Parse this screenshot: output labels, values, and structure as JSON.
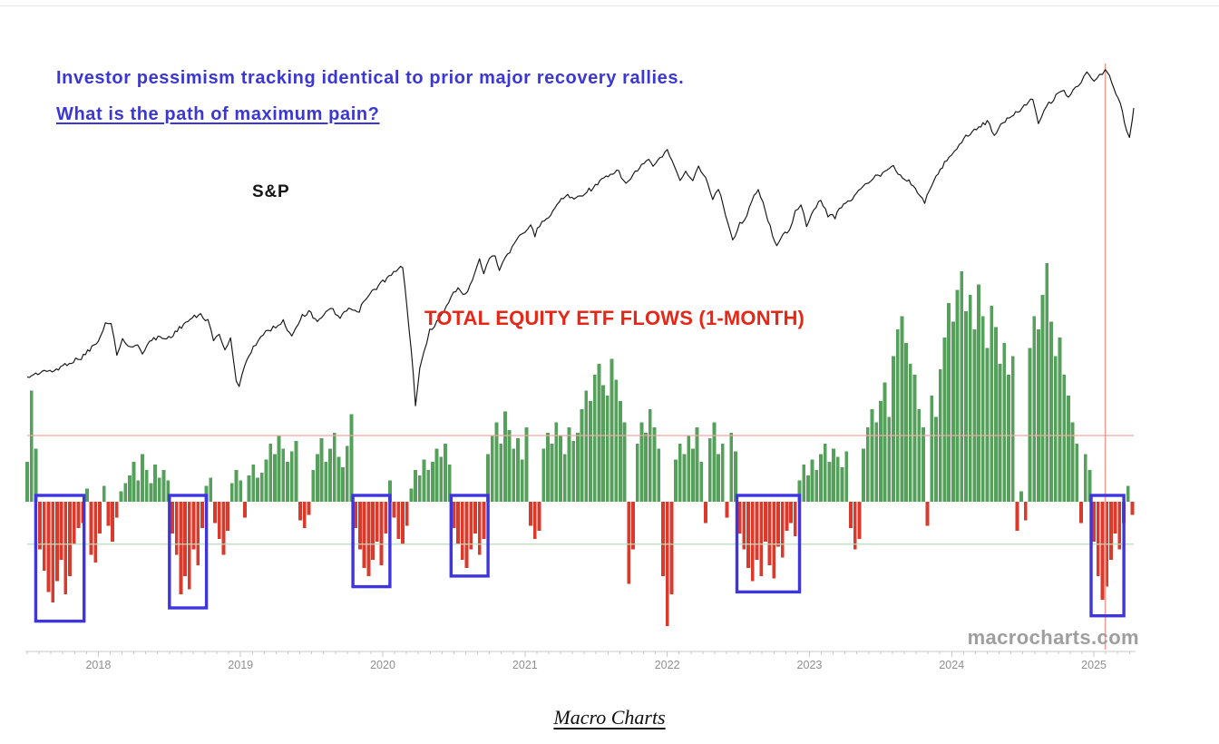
{
  "page": {
    "title_line1": "Investor pessimism tracking identical to prior major recovery rallies.",
    "title_line2": "What is the path of maximum pain?",
    "watermark": "macrocharts.com",
    "caption": "Macro Charts"
  },
  "colors": {
    "title_blue": "#3b37d6",
    "sp_line": "#141414",
    "flows_green": "#55a15b",
    "flows_red": "#d93a2b",
    "flows_label_red": "#e62617",
    "highlight_box_blue": "#3e35dd",
    "threshold_upper": "#f2a79f",
    "threshold_lower": "#b9ddb9",
    "marker_line": "#ee9f98",
    "axis_gray": "#c9c9c9",
    "tick_label_gray": "#8f8f8f",
    "watermark_gray": "#9e9e9e"
  },
  "chart_data": {
    "type": "line+bar combo",
    "title": "Investor pessimism tracking identical to prior major recovery rallies. What is the path of maximum pain?",
    "x_axis": {
      "range": [
        2017.5,
        2025.28
      ],
      "tick_years": [
        2018,
        2019,
        2020,
        2021,
        2022,
        2023,
        2024,
        2025
      ],
      "grid": false
    },
    "sp_price_range": [
      2240,
      6120
    ],
    "flows_value_range": [
      -50,
      92
    ],
    "thresholds": {
      "upper": 25,
      "lower": -16
    },
    "marker_line_t": 2025.08,
    "highlight_boxes": [
      {
        "t0": 2017.56,
        "t1": 2017.9,
        "depth": 43
      },
      {
        "t0": 2018.5,
        "t1": 2018.76,
        "depth": 38
      },
      {
        "t0": 2019.79,
        "t1": 2020.05,
        "depth": 30
      },
      {
        "t0": 2020.48,
        "t1": 2020.74,
        "depth": 26
      },
      {
        "t0": 2022.49,
        "t1": 2022.93,
        "depth": 32
      },
      {
        "t0": 2024.98,
        "t1": 2025.21,
        "depth": 41
      }
    ],
    "series": [
      {
        "name": "S&P 500",
        "type": "line",
        "label": "S&P",
        "points": [
          [
            2017.5,
            2428
          ],
          [
            2017.56,
            2450
          ],
          [
            2017.62,
            2478
          ],
          [
            2017.66,
            2462
          ],
          [
            2017.72,
            2492
          ],
          [
            2017.78,
            2530
          ],
          [
            2017.84,
            2555
          ],
          [
            2017.88,
            2575
          ],
          [
            2017.94,
            2640
          ],
          [
            2018.0,
            2700
          ],
          [
            2018.05,
            2845
          ],
          [
            2018.09,
            2872
          ],
          [
            2018.13,
            2585
          ],
          [
            2018.17,
            2740
          ],
          [
            2018.21,
            2650
          ],
          [
            2018.26,
            2680
          ],
          [
            2018.31,
            2620
          ],
          [
            2018.36,
            2700
          ],
          [
            2018.42,
            2740
          ],
          [
            2018.48,
            2725
          ],
          [
            2018.54,
            2775
          ],
          [
            2018.6,
            2850
          ],
          [
            2018.66,
            2900
          ],
          [
            2018.72,
            2930
          ],
          [
            2018.77,
            2880
          ],
          [
            2018.81,
            2710
          ],
          [
            2018.85,
            2770
          ],
          [
            2018.89,
            2640
          ],
          [
            2018.93,
            2720
          ],
          [
            2018.97,
            2400
          ],
          [
            2018.99,
            2350
          ],
          [
            2019.03,
            2530
          ],
          [
            2019.09,
            2660
          ],
          [
            2019.16,
            2760
          ],
          [
            2019.23,
            2820
          ],
          [
            2019.3,
            2870
          ],
          [
            2019.36,
            2750
          ],
          [
            2019.42,
            2900
          ],
          [
            2019.48,
            2960
          ],
          [
            2019.54,
            2880
          ],
          [
            2019.6,
            2950
          ],
          [
            2019.65,
            2980
          ],
          [
            2019.7,
            2890
          ],
          [
            2019.76,
            2990
          ],
          [
            2019.82,
            2940
          ],
          [
            2019.88,
            3070
          ],
          [
            2019.94,
            3160
          ],
          [
            2020.0,
            3240
          ],
          [
            2020.06,
            3300
          ],
          [
            2020.11,
            3360
          ],
          [
            2020.14,
            3390
          ],
          [
            2020.17,
            3000
          ],
          [
            2020.2,
            2650
          ],
          [
            2020.23,
            2240
          ],
          [
            2020.26,
            2480
          ],
          [
            2020.29,
            2620
          ],
          [
            2020.33,
            2790
          ],
          [
            2020.38,
            2870
          ],
          [
            2020.43,
            2950
          ],
          [
            2020.48,
            3100
          ],
          [
            2020.53,
            3180
          ],
          [
            2020.58,
            3100
          ],
          [
            2020.63,
            3270
          ],
          [
            2020.68,
            3480
          ],
          [
            2020.71,
            3320
          ],
          [
            2020.75,
            3480
          ],
          [
            2020.79,
            3520
          ],
          [
            2020.82,
            3330
          ],
          [
            2020.86,
            3500
          ],
          [
            2020.91,
            3580
          ],
          [
            2020.96,
            3700
          ],
          [
            2021.0,
            3760
          ],
          [
            2021.04,
            3840
          ],
          [
            2021.07,
            3730
          ],
          [
            2021.12,
            3900
          ],
          [
            2021.18,
            3960
          ],
          [
            2021.24,
            4130
          ],
          [
            2021.3,
            4200
          ],
          [
            2021.36,
            4160
          ],
          [
            2021.42,
            4240
          ],
          [
            2021.48,
            4300
          ],
          [
            2021.54,
            4400
          ],
          [
            2021.6,
            4460
          ],
          [
            2021.66,
            4520
          ],
          [
            2021.71,
            4340
          ],
          [
            2021.76,
            4470
          ],
          [
            2021.82,
            4600
          ],
          [
            2021.87,
            4680
          ],
          [
            2021.9,
            4560
          ],
          [
            2021.95,
            4710
          ],
          [
            2022.0,
            4795
          ],
          [
            2022.05,
            4620
          ],
          [
            2022.09,
            4370
          ],
          [
            2022.13,
            4540
          ],
          [
            2022.18,
            4380
          ],
          [
            2022.22,
            4600
          ],
          [
            2022.27,
            4420
          ],
          [
            2022.32,
            4150
          ],
          [
            2022.36,
            4290
          ],
          [
            2022.41,
            3980
          ],
          [
            2022.46,
            3670
          ],
          [
            2022.51,
            3850
          ],
          [
            2022.56,
            3960
          ],
          [
            2022.61,
            4180
          ],
          [
            2022.64,
            4300
          ],
          [
            2022.69,
            4020
          ],
          [
            2022.74,
            3720
          ],
          [
            2022.77,
            3590
          ],
          [
            2022.81,
            3720
          ],
          [
            2022.86,
            3800
          ],
          [
            2022.9,
            4000
          ],
          [
            2022.94,
            4080
          ],
          [
            2022.98,
            3840
          ],
          [
            2023.03,
            4000
          ],
          [
            2023.08,
            4150
          ],
          [
            2023.13,
            3960
          ],
          [
            2023.18,
            3940
          ],
          [
            2023.24,
            4100
          ],
          [
            2023.3,
            4160
          ],
          [
            2023.36,
            4280
          ],
          [
            2023.43,
            4400
          ],
          [
            2023.5,
            4480
          ],
          [
            2023.56,
            4580
          ],
          [
            2023.59,
            4600
          ],
          [
            2023.64,
            4460
          ],
          [
            2023.7,
            4380
          ],
          [
            2023.76,
            4250
          ],
          [
            2023.81,
            4120
          ],
          [
            2023.86,
            4320
          ],
          [
            2023.92,
            4550
          ],
          [
            2023.98,
            4720
          ],
          [
            2024.02,
            4800
          ],
          [
            2024.07,
            4940
          ],
          [
            2024.13,
            5080
          ],
          [
            2024.19,
            5160
          ],
          [
            2024.25,
            5250
          ],
          [
            2024.3,
            5060
          ],
          [
            2024.36,
            5220
          ],
          [
            2024.42,
            5350
          ],
          [
            2024.48,
            5450
          ],
          [
            2024.54,
            5570
          ],
          [
            2024.57,
            5650
          ],
          [
            2024.61,
            5220
          ],
          [
            2024.65,
            5450
          ],
          [
            2024.7,
            5580
          ],
          [
            2024.75,
            5720
          ],
          [
            2024.79,
            5770
          ],
          [
            2024.82,
            5660
          ],
          [
            2024.87,
            5800
          ],
          [
            2024.91,
            5900
          ],
          [
            2024.95,
            6090
          ],
          [
            2025.0,
            5910
          ],
          [
            2025.04,
            6020
          ],
          [
            2025.08,
            6110
          ],
          [
            2025.11,
            6000
          ],
          [
            2025.14,
            5850
          ],
          [
            2025.17,
            5620
          ],
          [
            2025.2,
            5420
          ],
          [
            2025.23,
            5100
          ],
          [
            2025.25,
            4982
          ],
          [
            2025.27,
            5280
          ],
          [
            2025.28,
            5470
          ]
        ]
      },
      {
        "name": "Total Equity ETF Flows (1-Month)",
        "type": "bar",
        "label": "TOTAL EQUITY ETF FLOWS (1-MONTH)",
        "t_start": 2017.5,
        "t_step": 0.03,
        "values": [
          15,
          42,
          20,
          -18,
          -26,
          -34,
          -38,
          -30,
          -22,
          -35,
          -28,
          -16,
          -10,
          -8,
          5,
          -20,
          -23,
          -12,
          6,
          -9,
          -15,
          -6,
          4,
          7,
          10,
          15,
          8,
          18,
          12,
          7,
          14,
          9,
          12,
          8,
          -12,
          -20,
          -35,
          -28,
          -33,
          -18,
          -24,
          -10,
          6,
          9,
          -8,
          -14,
          -20,
          -11,
          7,
          12,
          8,
          -6,
          10,
          14,
          9,
          11,
          16,
          22,
          18,
          25,
          20,
          15,
          19,
          23,
          -7,
          -10,
          -5,
          12,
          18,
          24,
          15,
          20,
          26,
          17,
          13,
          21,
          33,
          -10,
          -18,
          -25,
          -28,
          -22,
          -15,
          -24,
          -12,
          8,
          -6,
          -14,
          -16,
          -9,
          5,
          12,
          10,
          16,
          12,
          15,
          20,
          17,
          22,
          14,
          -10,
          -16,
          -22,
          -25,
          -18,
          -12,
          -20,
          -14,
          18,
          25,
          30,
          22,
          34,
          27,
          20,
          24,
          16,
          28,
          -9,
          -14,
          -11,
          20,
          26,
          22,
          30,
          25,
          18,
          28,
          23,
          26,
          35,
          42,
          38,
          48,
          52,
          44,
          40,
          54,
          46,
          38,
          30,
          -31,
          -18,
          22,
          30,
          26,
          35,
          28,
          20,
          -28,
          -47,
          -35,
          16,
          22,
          18,
          25,
          20,
          28,
          15,
          -8,
          24,
          30,
          18,
          22,
          -6,
          26,
          19,
          -12,
          -18,
          -25,
          -30,
          -22,
          -28,
          -15,
          -24,
          -29,
          -17,
          -21,
          -11,
          -8,
          -13,
          8,
          14,
          10,
          16,
          12,
          18,
          22,
          15,
          20,
          17,
          13,
          19,
          -10,
          -18,
          -14,
          20,
          28,
          35,
          30,
          38,
          45,
          32,
          55,
          65,
          70,
          60,
          52,
          48,
          35,
          28,
          -9,
          40,
          32,
          50,
          62,
          75,
          68,
          80,
          87,
          72,
          78,
          65,
          82,
          70,
          58,
          74,
          66,
          52,
          60,
          48,
          55,
          -11,
          4,
          -7,
          58,
          70,
          65,
          78,
          90,
          68,
          55,
          62,
          48,
          40,
          30,
          22,
          -8,
          18,
          12,
          -15,
          -28,
          -37,
          -32,
          -22,
          -12,
          -18,
          -8,
          6,
          -5
        ]
      }
    ]
  }
}
